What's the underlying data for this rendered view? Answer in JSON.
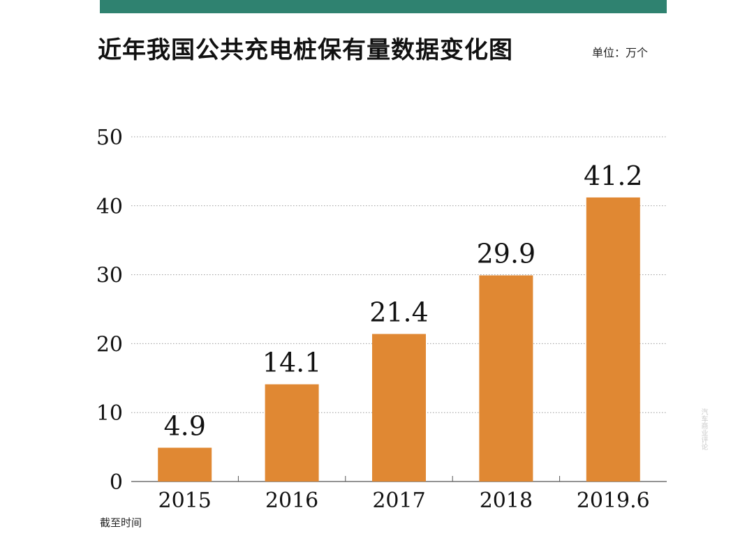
{
  "header": {
    "title": "近年我国公共充电桩保有量数据变化图",
    "unit": "单位：万个"
  },
  "footer": {
    "x_note": "截至时间"
  },
  "watermark": {
    "text": "汽车商业评论"
  },
  "colors": {
    "band": "#2f8270",
    "bar": "#e08833",
    "grid": "#9a9a9a",
    "text": "#111111"
  },
  "chart_data": {
    "type": "bar",
    "title": "近年我国公共充电桩保有量数据变化图",
    "xlabel": "截至时间",
    "ylabel": "单位：万个",
    "categories": [
      "2015",
      "2016",
      "2017",
      "2018",
      "2019.6"
    ],
    "values": [
      4.9,
      14.1,
      21.4,
      29.9,
      41.2
    ],
    "data_labels": [
      "4.9",
      "14.1",
      "21.4",
      "29.9",
      "41.2"
    ],
    "y_ticks": [
      0,
      10,
      20,
      30,
      40,
      50
    ],
    "ylim": [
      0,
      50
    ],
    "grid": true,
    "legend": "none"
  }
}
